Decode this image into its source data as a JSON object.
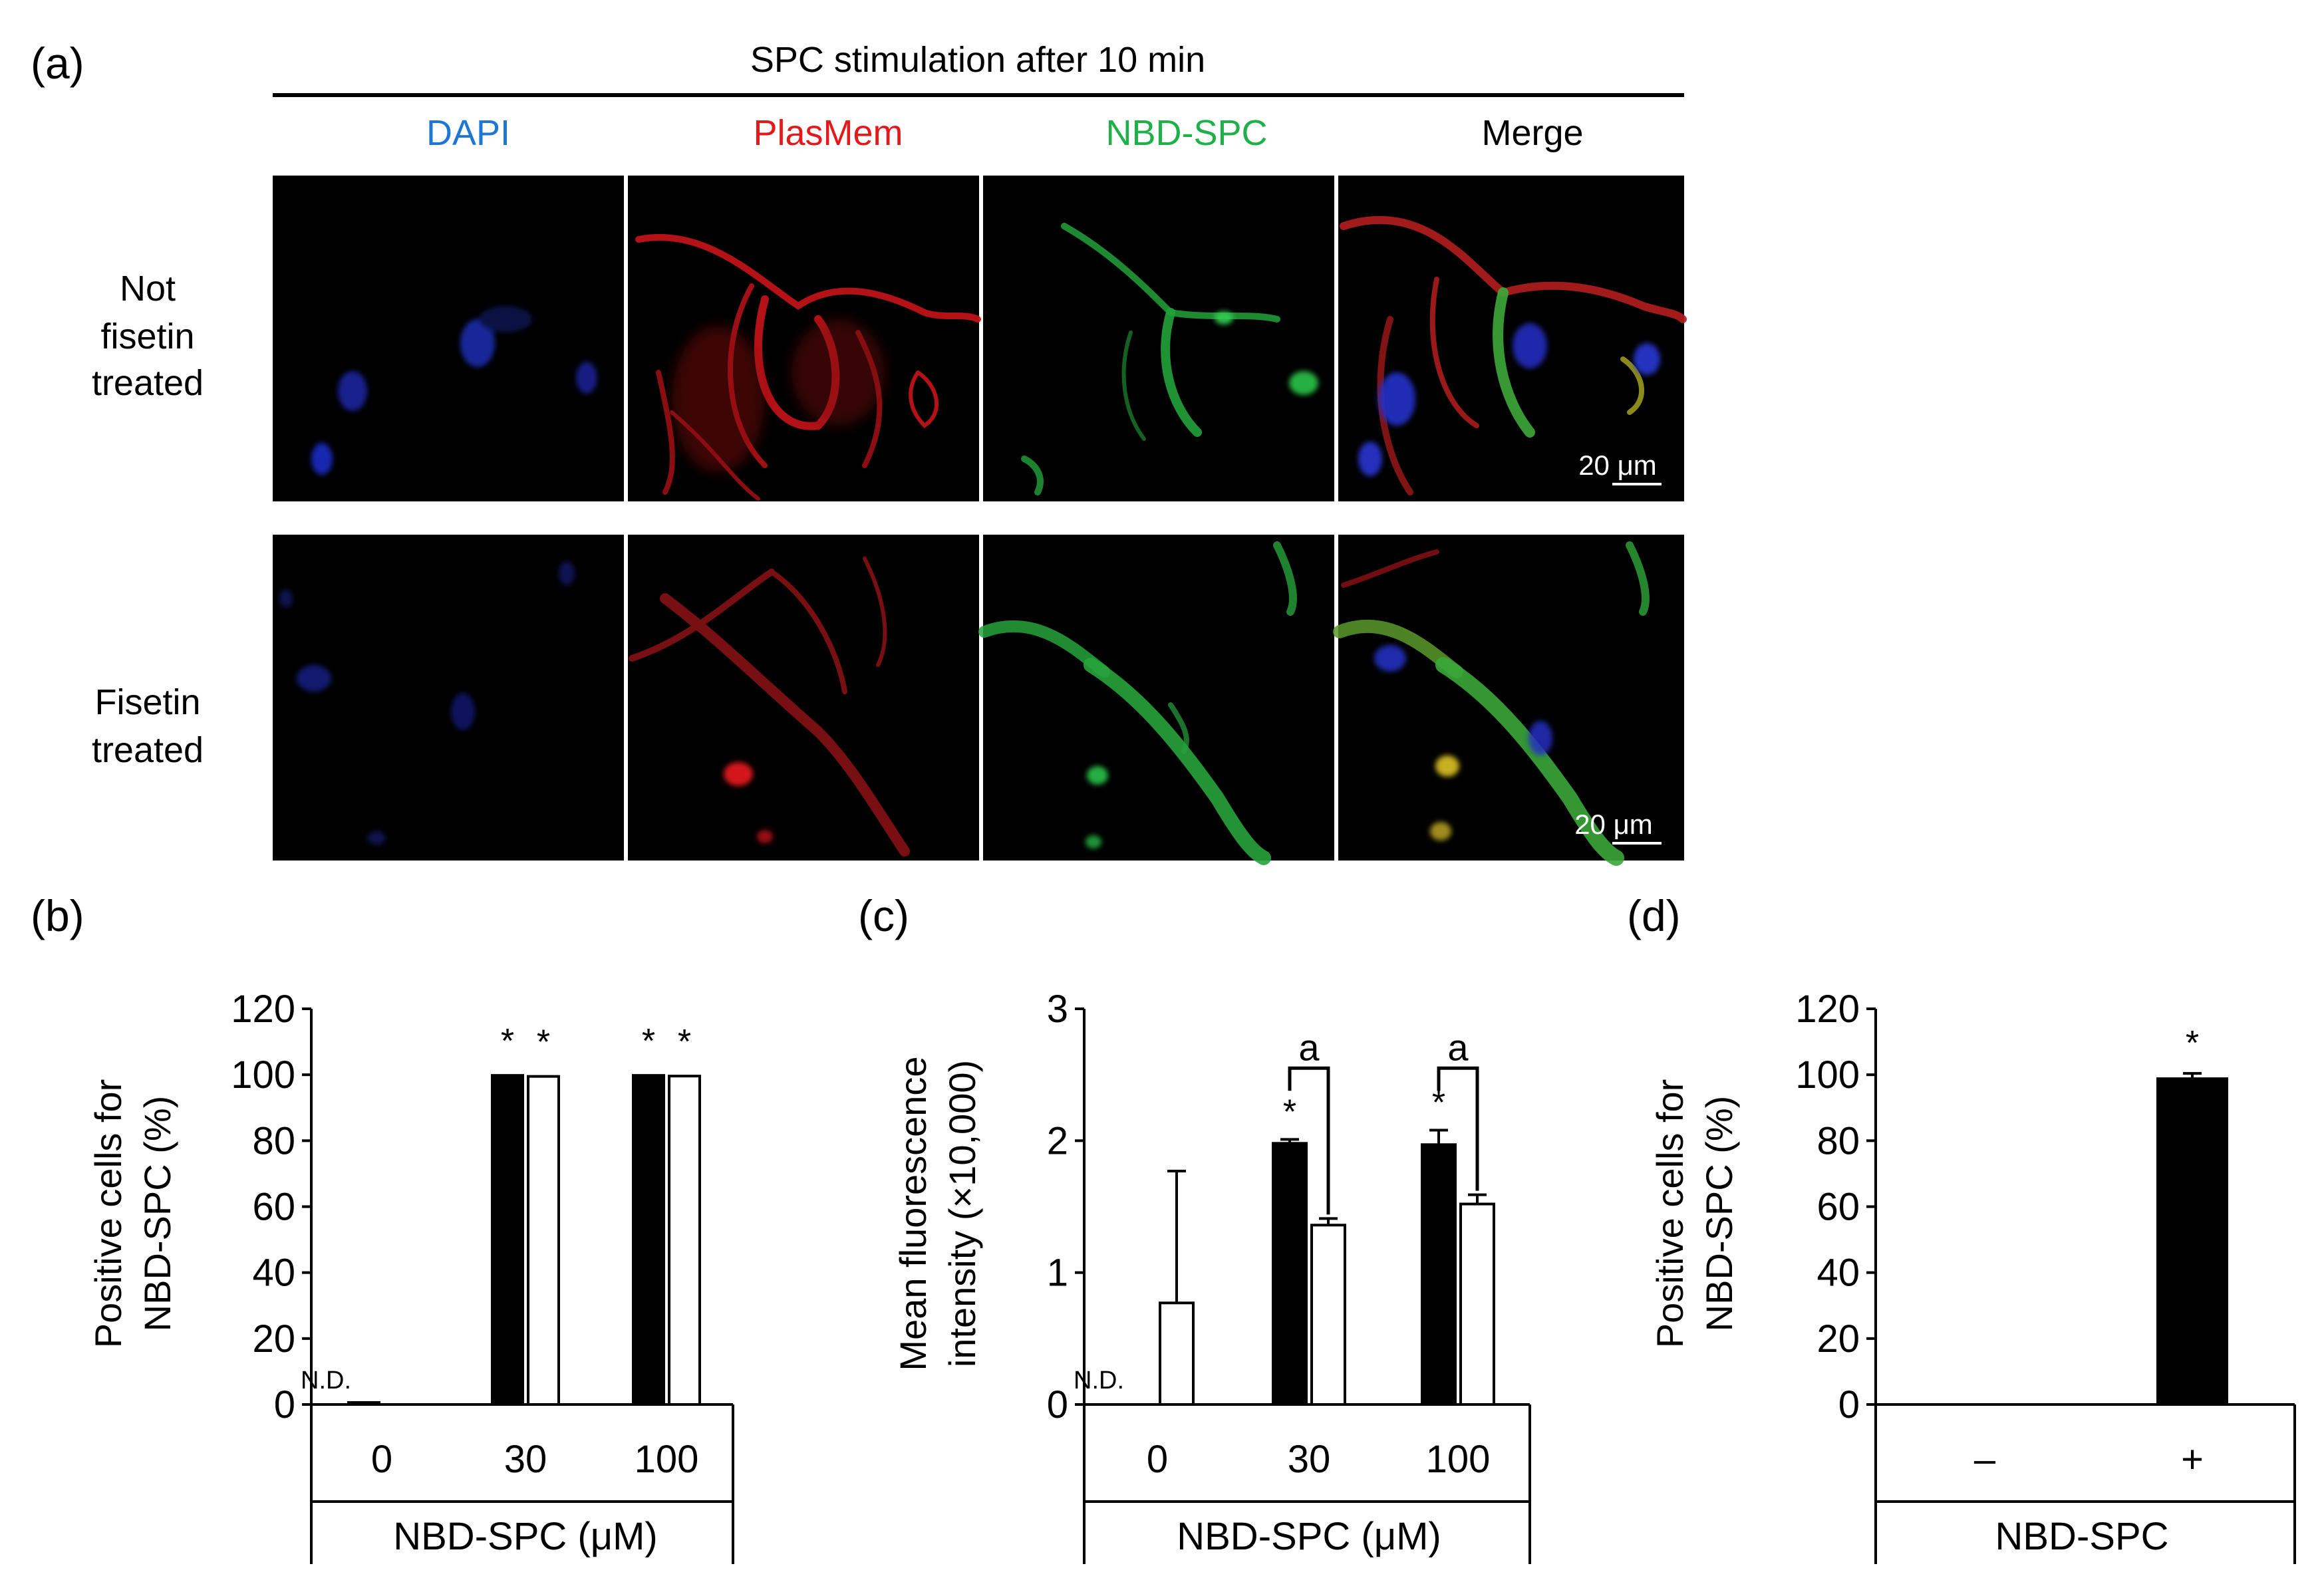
{
  "panel_a": {
    "label": "(a)",
    "header": "SPC stimulation after 10 min",
    "channels": [
      {
        "label": "DAPI",
        "color": "#1f77d4"
      },
      {
        "label": "PlasMem",
        "color": "#e31a1c"
      },
      {
        "label": "NBD-SPC",
        "color": "#1fb04a"
      },
      {
        "label": "Merge",
        "color": "#000000"
      }
    ],
    "rows": [
      {
        "label_lines": [
          "Not",
          "fisetin",
          "treated"
        ]
      },
      {
        "label_lines": [
          "Fisetin",
          "treated"
        ]
      }
    ],
    "scale_bar": "20 μm"
  },
  "chart_data": [
    {
      "panel": "(b)",
      "type": "bar",
      "categories": [
        "0",
        "30",
        "100"
      ],
      "series": [
        {
          "fill": "#000000",
          "values": [
            0.5,
            99.8,
            99.8
          ],
          "errors": [
            0,
            0,
            0
          ]
        },
        {
          "fill": "#ffffff",
          "values": [
            null,
            99.5,
            99.6
          ],
          "errors": [
            0,
            0,
            0
          ]
        }
      ],
      "ylabel_lines": [
        "Positive cells for",
        "NBD-SPC (%)"
      ],
      "xlabel": "NBD-SPC (μM)",
      "ylim": [
        0,
        120
      ],
      "yticks": [
        0,
        20,
        40,
        60,
        80,
        100,
        120
      ],
      "nd_label": "N.D.",
      "sig_marker": "*"
    },
    {
      "panel": "(c)",
      "type": "bar",
      "categories": [
        "0",
        "30",
        "100"
      ],
      "series": [
        {
          "fill": "#000000",
          "values": [
            null,
            1.98,
            1.97
          ],
          "errors": [
            0,
            0.03,
            0.11
          ]
        },
        {
          "fill": "#ffffff",
          "values": [
            0.77,
            1.36,
            1.52
          ],
          "errors": [
            1.0,
            0.05,
            0.07
          ]
        }
      ],
      "ylabel_lines": [
        "Mean fluorescence",
        "intensity (×10,000)"
      ],
      "xlabel": "NBD-SPC (μM)",
      "ylim": [
        0,
        3
      ],
      "yticks": [
        0,
        1,
        2,
        3
      ],
      "nd_label": "N.D.",
      "sig_marker": "*",
      "bracket_label": "a"
    },
    {
      "panel": "(d)",
      "type": "bar",
      "categories": [
        "–",
        "+"
      ],
      "series": [
        {
          "fill": "#000000",
          "values": [
            null,
            98.8
          ],
          "errors": [
            0,
            1.6
          ]
        }
      ],
      "ylabel_lines": [
        "Positive cells for",
        "NBD-SPC (%)"
      ],
      "xlabel": "NBD-SPC",
      "ylim": [
        0,
        120
      ],
      "yticks": [
        0,
        20,
        40,
        60,
        80,
        100,
        120
      ],
      "sig_marker": "*"
    }
  ]
}
